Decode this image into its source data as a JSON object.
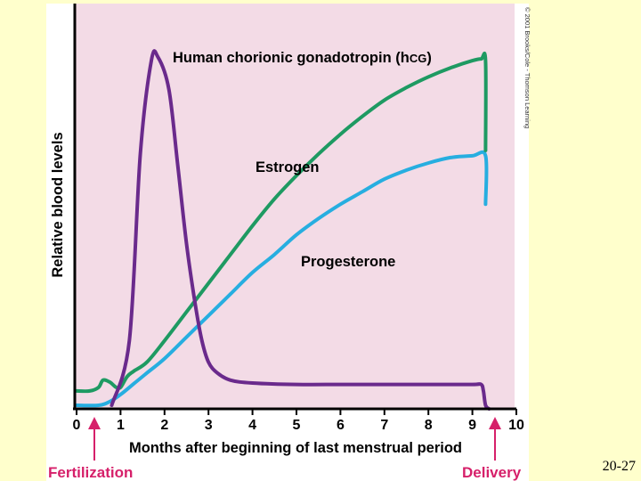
{
  "slide": {
    "number": "20-27"
  },
  "credit": "© 2001 Brooks/Cole - Thomson Learning",
  "colors": {
    "background": "#ffffcc",
    "plot_background": "#f3dbe6",
    "hcg": "#6a2a8c",
    "estrogen": "#1e9a62",
    "progesterone": "#27aee0",
    "arrow": "#d6206a"
  },
  "chart_data": {
    "type": "line",
    "title": "",
    "xlabel": "Months after beginning of last menstrual period",
    "ylabel": "Relative blood levels",
    "xlim": [
      0,
      10
    ],
    "ylim": [
      0,
      100
    ],
    "x_ticks": [
      0,
      1,
      2,
      3,
      4,
      5,
      6,
      7,
      8,
      9,
      10
    ],
    "grid": false,
    "series": [
      {
        "name": "Human chorionic gonadotropin (hCG)",
        "label_main": "Human chorionic gonadotropin (h",
        "label_cg": "CG",
        "label_end": ")",
        "color": "#6a2a8c",
        "x": [
          0.8,
          1.2,
          1.45,
          1.7,
          1.85,
          2.1,
          2.3,
          2.5,
          2.7,
          2.85,
          3.0,
          3.2,
          3.5,
          4.0,
          5.0,
          6.0,
          7.0,
          8.0,
          9.0,
          9.2,
          9.25,
          9.3,
          9.38
        ],
        "y": [
          0,
          18,
          70,
          96,
          97,
          88,
          67,
          45,
          28,
          18,
          12,
          9,
          7,
          6.2,
          5.8,
          5.8,
          5.8,
          5.8,
          5.8,
          5.8,
          4,
          0,
          -1
        ]
      },
      {
        "name": "Estrogen",
        "label": "Estrogen",
        "color": "#1e9a62",
        "x": [
          0,
          0.3,
          0.5,
          0.6,
          0.75,
          0.9,
          1.0,
          1.15,
          1.3,
          1.6,
          2.0,
          2.5,
          3.0,
          3.5,
          4.0,
          4.5,
          5.0,
          5.5,
          6.0,
          6.5,
          7.0,
          7.5,
          8.0,
          8.5,
          9.0,
          9.2,
          9.3,
          9.3
        ],
        "y": [
          4,
          4,
          5,
          7,
          6.5,
          5,
          5,
          8,
          9.5,
          12,
          18,
          26,
          34,
          42,
          50,
          57.5,
          64,
          70,
          75.5,
          80.5,
          85,
          88.5,
          91.5,
          94,
          96,
          96.5,
          96,
          71
        ]
      },
      {
        "name": "Progesterone",
        "label": "Progesterone",
        "color": "#27aee0",
        "x": [
          0,
          0.5,
          0.75,
          1.0,
          1.3,
          1.6,
          2.0,
          2.5,
          3.0,
          3.5,
          4.0,
          4.5,
          5.0,
          5.5,
          6.0,
          6.5,
          7.0,
          7.5,
          8.0,
          8.5,
          9.0,
          9.3,
          9.3
        ],
        "y": [
          0,
          0,
          1,
          3,
          6,
          9,
          13,
          19,
          25,
          31,
          37,
          42,
          47.5,
          52,
          56,
          59.5,
          63,
          65.5,
          67.5,
          69,
          69.5,
          69.5,
          56
        ]
      }
    ],
    "annotations": [
      {
        "text": "Fertilization",
        "x": 0.45
      },
      {
        "text": "Delivery",
        "x": 9.55
      }
    ]
  }
}
